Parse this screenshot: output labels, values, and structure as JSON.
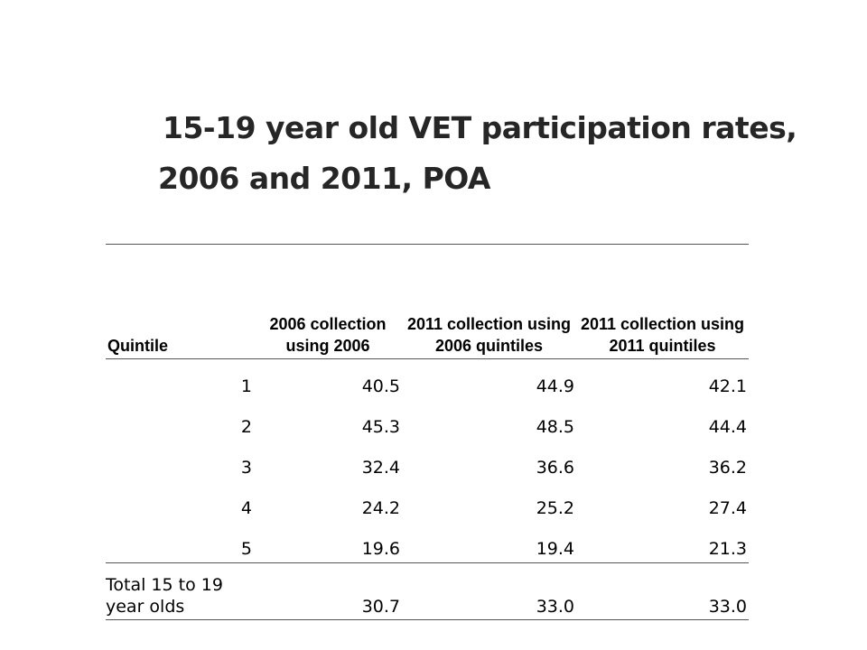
{
  "title": {
    "line1": "15-19 year old VET participation rates,",
    "line2": "2006 and 2011, POA"
  },
  "table": {
    "headers": [
      "Quintile",
      "2006 collection using 2006",
      "2011 collection using 2006 quintiles",
      "2011 collection using 2011 quintiles"
    ],
    "rows": [
      [
        "1",
        "40.5",
        "44.9",
        "42.1"
      ],
      [
        "2",
        "45.3",
        "48.5",
        "44.4"
      ],
      [
        "3",
        "32.4",
        "36.6",
        "36.2"
      ],
      [
        "4",
        "24.2",
        "25.2",
        "27.4"
      ],
      [
        "5",
        "19.6",
        "19.4",
        "21.3"
      ]
    ],
    "total": {
      "label": "Total 15 to 19 year olds",
      "values": [
        "30.7",
        "33.0",
        "33.0"
      ]
    }
  }
}
